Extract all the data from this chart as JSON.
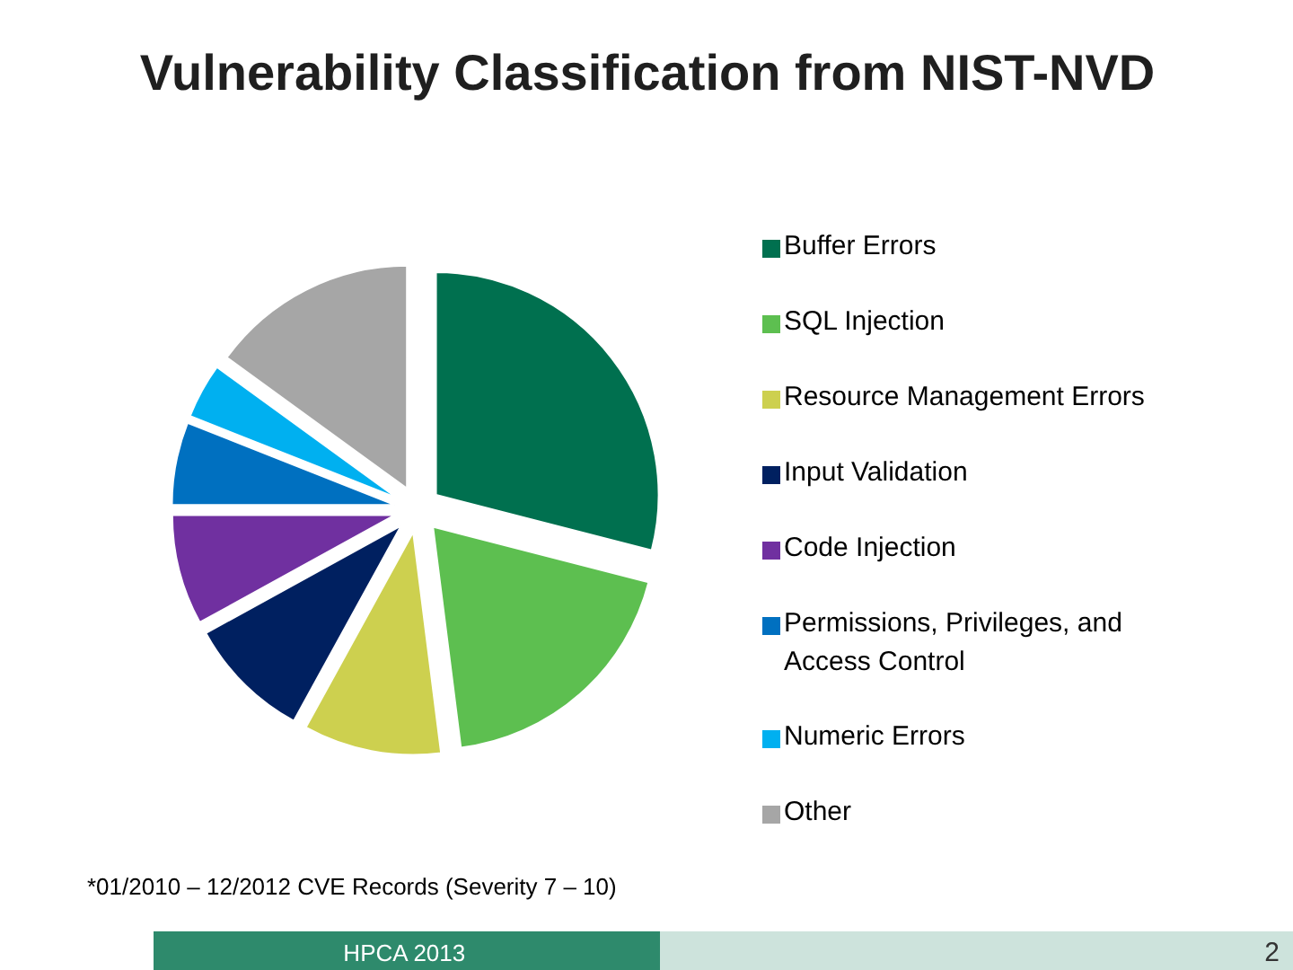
{
  "chart_data": {
    "type": "pie",
    "title": "Vulnerability Classification from NIST-NVD",
    "categories": [
      "Buffer Errors",
      "SQL Injection",
      "Resource Management Errors",
      "Input Validation",
      "Code Injection",
      "Permissions, Privileges, and Access Control",
      "Numeric Errors",
      "Other"
    ],
    "values": [
      29,
      19,
      10,
      9,
      8,
      6,
      4,
      15
    ],
    "colors": [
      "#00704f",
      "#5dbf50",
      "#cdd04f",
      "#002060",
      "#7030a0",
      "#0070c0",
      "#00b0f0",
      "#a6a6a6"
    ],
    "legend": "right",
    "annotations": [
      "*01/2010 – 12/2012 CVE Records (Severity 7 – 10)",
      "HPCA 2013",
      "2"
    ]
  }
}
